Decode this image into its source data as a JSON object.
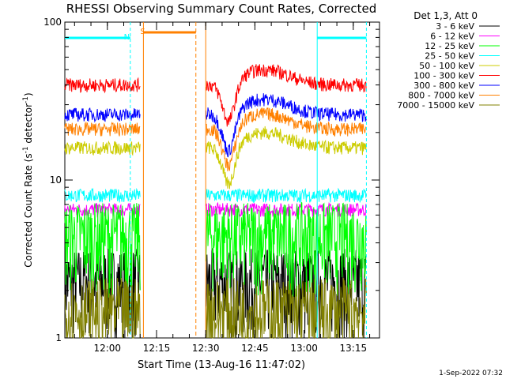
{
  "chart_data": {
    "type": "line",
    "title": "RHESSI Observing Summary Count Rates, Corrected",
    "xlabel": "Start Time (13-Aug-16 11:47:02)",
    "ylabel_main": "Corrected Count Rate (s",
    "ylabel_sup1": "-1",
    "ylabel_mid": " detector",
    "ylabel_sup2": "-1",
    "ylabel_end": ")",
    "y_scale": "log",
    "ylim": [
      1,
      100
    ],
    "y_ticks": [
      "1",
      "10",
      "100"
    ],
    "x_range_minutes": [
      "11:47",
      "13:23"
    ],
    "x_ticks": [
      "12:00",
      "12:15",
      "12:30",
      "12:45",
      "13:00",
      "13:15"
    ],
    "x_tick_values": [
      "12:00",
      "12:15",
      "12:30",
      "12:45",
      "13:00",
      "13:15"
    ],
    "legend_header": "Det 1,3, Att 0",
    "legend_placement": "right",
    "series": [
      {
        "name": "3 - 6 keV",
        "color": "#000000",
        "level": 2.3
      },
      {
        "name": "6 - 12 keV",
        "color": "#ff00ff",
        "level": 6.5
      },
      {
        "name": "12 - 25 keV",
        "color": "#00ff00",
        "level": 4.5
      },
      {
        "name": "25 - 50 keV",
        "color": "#00ffff",
        "level": 8.0
      },
      {
        "name": "50 - 100 keV",
        "color": "#cccc00",
        "level": 16.0
      },
      {
        "name": "100 - 300 keV",
        "color": "#ff0000",
        "level": 40.0
      },
      {
        "name": "300 - 800 keV",
        "color": "#0000ff",
        "level": 26.0
      },
      {
        "name": "800 - 7000 keV",
        "color": "#ff8000",
        "level": 21.0
      },
      {
        "name": "7000 - 15000 keV",
        "color": "#808000",
        "level": 1.5
      }
    ],
    "data_gaps": [
      [
        "12:10",
        "12:30"
      ],
      [
        "13:19",
        "13:23"
      ]
    ],
    "markers": [
      {
        "label": "S",
        "color": "#ff8000",
        "time": "12:11"
      },
      {
        "label": "N",
        "color": "#00ffff",
        "time": "12:06"
      }
    ],
    "footer_date": "1-Sep-2022 07:32"
  }
}
